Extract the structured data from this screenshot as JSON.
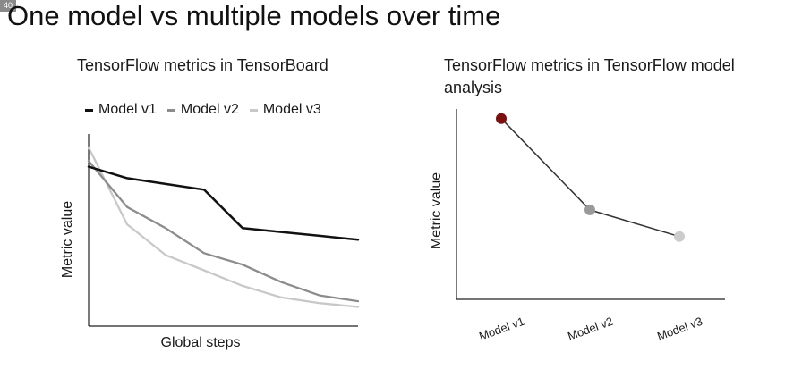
{
  "slide": {
    "number": "40",
    "title": "One model vs multiple models over time"
  },
  "chart_data": [
    {
      "type": "line",
      "title": "TensorFlow metrics in TensorBoard",
      "xlabel": "Global steps",
      "ylabel": "Metric value",
      "x": [
        0,
        1,
        2,
        3,
        4,
        5,
        6,
        7
      ],
      "series": [
        {
          "name": "Model v1",
          "color": "#111111",
          "values": [
            0.83,
            0.77,
            0.74,
            0.71,
            0.51,
            0.49,
            0.47,
            0.45
          ]
        },
        {
          "name": "Model v2",
          "color": "#8c8c8c",
          "values": [
            0.86,
            0.62,
            0.51,
            0.38,
            0.32,
            0.23,
            0.16,
            0.13
          ]
        },
        {
          "name": "Model v3",
          "color": "#c8c8c8",
          "values": [
            0.93,
            0.53,
            0.37,
            0.29,
            0.21,
            0.15,
            0.12,
            0.1
          ]
        }
      ],
      "grid": false,
      "legend": "top"
    },
    {
      "type": "line",
      "title": "TensorFlow metrics in TensorFlow model analysis",
      "xlabel": "",
      "ylabel": "Metric value",
      "categories": [
        "Model v1",
        "Model v2",
        "Model v3"
      ],
      "values": [
        0.95,
        0.47,
        0.33
      ],
      "point_colors": [
        "#7a1010",
        "#9a9a9a",
        "#cccccc"
      ],
      "line_color": "#333333",
      "grid": false,
      "legend": "none"
    }
  ]
}
